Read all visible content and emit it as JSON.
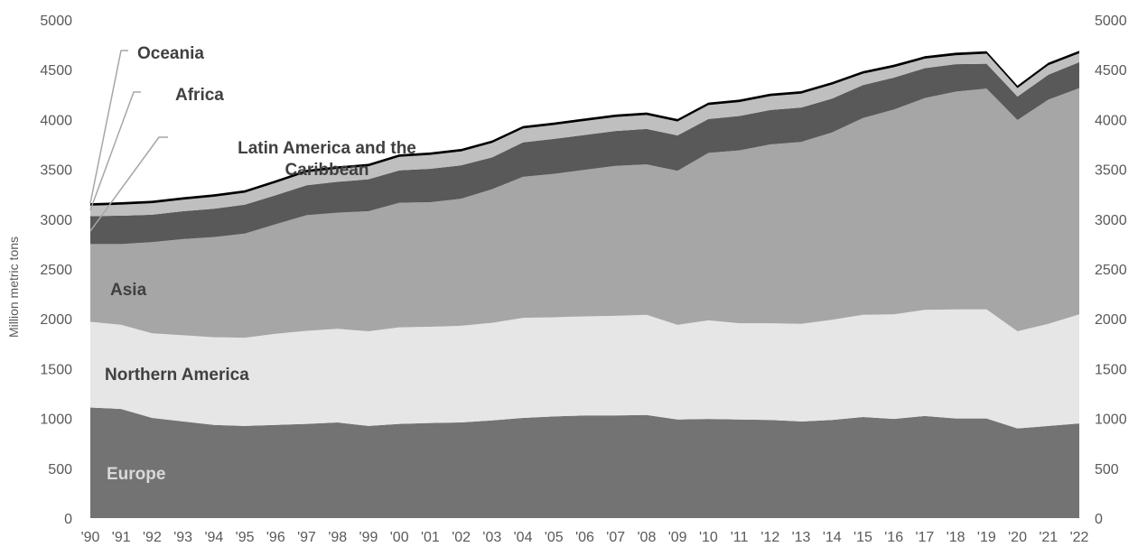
{
  "chart_data": {
    "type": "area",
    "stacked": true,
    "ylabel": "Million metric tons",
    "ylim": [
      0,
      5000
    ],
    "yticks": [
      0,
      500,
      1000,
      1500,
      2000,
      2500,
      3000,
      3500,
      4000,
      4500,
      5000
    ],
    "right_axis": true,
    "grid": false,
    "x": [
      "'90",
      "'91",
      "'92",
      "'93",
      "'94",
      "'95",
      "'96",
      "'97",
      "'98",
      "'99",
      "'00",
      "'01",
      "'02",
      "'03",
      "'04",
      "'05",
      "'06",
      "'07",
      "'08",
      "'09",
      "'10",
      "'11",
      "'12",
      "'13",
      "'14",
      "'15",
      "'16",
      "'17",
      "'18",
      "'19",
      "'20",
      "'21",
      "'22"
    ],
    "series": [
      {
        "name": "Europe",
        "color": "#737373",
        "label_color": "#d9d9d9",
        "values": [
          1110,
          1095,
          1005,
          970,
          935,
          925,
          935,
          945,
          960,
          925,
          945,
          955,
          960,
          980,
          1005,
          1020,
          1030,
          1030,
          1035,
          990,
          995,
          990,
          985,
          970,
          985,
          1015,
          995,
          1025,
          1000,
          1000,
          900,
          925,
          950
        ]
      },
      {
        "name": "Northern America",
        "color": "#e6e6e6",
        "label_color": "#404040",
        "values": [
          860,
          845,
          850,
          865,
          880,
          885,
          915,
          935,
          940,
          950,
          970,
          965,
          970,
          980,
          1005,
          995,
          995,
          1000,
          1005,
          950,
          990,
          965,
          970,
          980,
          1005,
          1025,
          1050,
          1065,
          1095,
          1095,
          975,
          1025,
          1095
        ]
      },
      {
        "name": "Asia",
        "color": "#a6a6a6",
        "label_color": "#404040",
        "values": [
          780,
          810,
          915,
          965,
          1005,
          1045,
          1100,
          1160,
          1165,
          1205,
          1250,
          1250,
          1275,
          1340,
          1415,
          1440,
          1470,
          1505,
          1510,
          1545,
          1680,
          1735,
          1795,
          1825,
          1880,
          1975,
          2055,
          2125,
          2185,
          2215,
          2120,
          2250,
          2270
        ]
      },
      {
        "name": "Latin America and the Caribbean",
        "color": "#595959",
        "label_color": "#404040",
        "values": [
          280,
          285,
          275,
          280,
          285,
          290,
          290,
          300,
          310,
          320,
          325,
          335,
          335,
          320,
          345,
          350,
          350,
          350,
          355,
          355,
          340,
          345,
          345,
          345,
          340,
          330,
          320,
          300,
          275,
          250,
          235,
          250,
          260
        ]
      },
      {
        "name": "Africa",
        "color": "#bfbfbf",
        "label_color": "#404040",
        "values": [
          105,
          110,
          115,
          115,
          120,
          120,
          125,
          130,
          130,
          130,
          135,
          140,
          140,
          145,
          140,
          140,
          140,
          140,
          140,
          140,
          140,
          140,
          140,
          140,
          140,
          115,
          105,
          95,
          90,
          100,
          85,
          95,
          90
        ]
      },
      {
        "name": "Oceania",
        "color": "#000000",
        "label_color": "#404040",
        "values": [
          25,
          25,
          25,
          25,
          25,
          25,
          25,
          25,
          25,
          25,
          25,
          25,
          25,
          25,
          25,
          25,
          25,
          25,
          25,
          25,
          25,
          25,
          25,
          25,
          25,
          25,
          25,
          25,
          25,
          25,
          25,
          25,
          25
        ]
      }
    ]
  }
}
